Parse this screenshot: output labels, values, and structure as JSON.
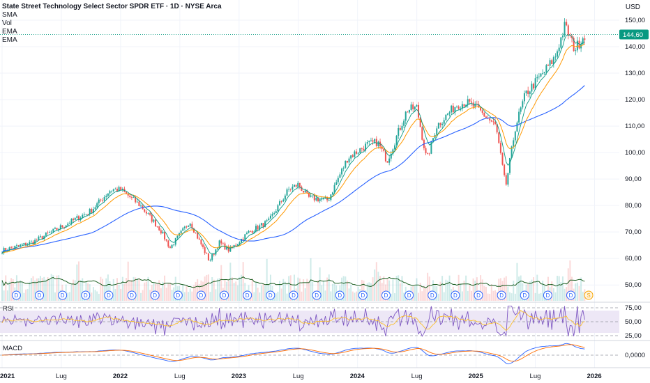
{
  "header": {
    "title": "State Street Technology Select Sector SPDR ETF · 1D · NYSE Arca",
    "indicators": [
      "SMA",
      "Vol",
      "EMA",
      "EMA"
    ],
    "currency": "USD"
  },
  "panes": {
    "rsi_label": "RSI",
    "macd_label": "MACD"
  },
  "colors": {
    "up": "#26a69a",
    "down": "#ef5350",
    "sma200": "#2962ff",
    "ema_fast": "#089981",
    "ema_slow": "#ff9800",
    "vol_ma": "#1b5e20",
    "rsi_line": "#7e57c2",
    "rsi_ma": "#fbc02d",
    "rsi_band": "#ede7f6",
    "macd_line": "#2962ff",
    "signal_line": "#ff6d00",
    "last_price_bg": "#089981",
    "dividend_badge": "#2962ff",
    "split_badge": "#f7a600",
    "grid": "#f0f3fa"
  },
  "chart_data": {
    "type": "candlestick",
    "price_axis": {
      "ticks": [
        50,
        60,
        70,
        80,
        90,
        100,
        110,
        120,
        130,
        140,
        150
      ],
      "tick_labels": [
        "50,00",
        "60,00",
        "70,00",
        "80,00",
        "90,00",
        "100,00",
        "110,00",
        "120,00",
        "130,00",
        "140,00",
        "150,00"
      ],
      "range": [
        44,
        155
      ]
    },
    "time_axis": {
      "labels": [
        "2021",
        "Lug",
        "2022",
        "Lug",
        "2023",
        "Lug",
        "2024",
        "Lug",
        "2025",
        "Lug",
        "2026"
      ]
    },
    "last_price": 144.6,
    "last_price_label": "144,60",
    "close_path": [
      [
        "2021-01",
        63
      ],
      [
        "2021-04",
        66
      ],
      [
        "2021-07",
        72
      ],
      [
        "2021-10",
        78
      ],
      [
        "2021-12",
        86
      ],
      [
        "2022-01",
        86
      ],
      [
        "2022-03",
        80
      ],
      [
        "2022-05",
        71
      ],
      [
        "2022-06",
        64
      ],
      [
        "2022-08",
        74
      ],
      [
        "2022-10",
        59
      ],
      [
        "2022-11",
        66
      ],
      [
        "2022-12",
        63
      ],
      [
        "2023-02",
        70
      ],
      [
        "2023-04",
        74
      ],
      [
        "2023-06",
        86
      ],
      [
        "2023-07",
        88
      ],
      [
        "2023-08",
        83
      ],
      [
        "2023-10",
        82
      ],
      [
        "2023-12",
        98
      ],
      [
        "2024-02",
        103
      ],
      [
        "2024-03",
        104
      ],
      [
        "2024-04",
        97
      ],
      [
        "2024-06",
        116
      ],
      [
        "2024-07",
        117
      ],
      [
        "2024-08",
        97
      ],
      [
        "2024-09",
        110
      ],
      [
        "2024-11",
        118
      ],
      [
        "2024-12",
        119
      ],
      [
        "2025-01",
        117
      ],
      [
        "2025-03",
        110
      ],
      [
        "2025-04",
        87
      ],
      [
        "2025-05",
        110
      ],
      [
        "2025-06",
        122
      ],
      [
        "2025-08",
        131
      ],
      [
        "2025-09",
        136
      ],
      [
        "2025-10",
        148
      ],
      [
        "2025-11",
        139
      ],
      [
        "2025-12",
        144.6
      ]
    ],
    "volume_axis": {
      "dividend_markers": 25,
      "split_marker": "S"
    },
    "rsi_axis": {
      "ticks": [
        25,
        50,
        75
      ],
      "tick_labels": [
        "25,00",
        "50,00",
        "75,00"
      ],
      "upper_band": 70,
      "lower_band": 30
    },
    "macd_axis": {
      "ticks": [
        0
      ],
      "tick_labels": [
        "0,0000"
      ]
    }
  }
}
